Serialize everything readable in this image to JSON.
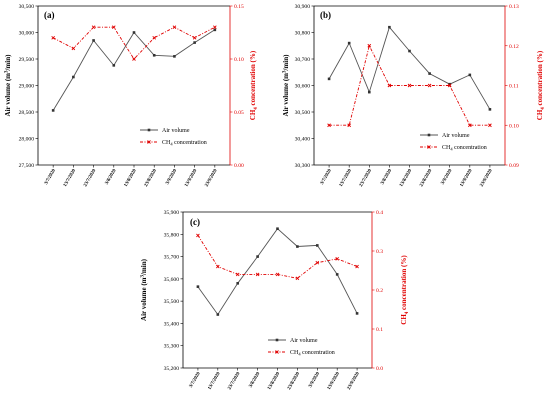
{
  "chart_data": [
    {
      "type": "line",
      "panel_label": "(a)",
      "categories": [
        "3/7/2020",
        "13/7/2020",
        "23/7/2020",
        "3/8/2020",
        "13/8/2020",
        "23/8/2020",
        "3/9/2020",
        "13/9/2020",
        "23/9/2020"
      ],
      "ylabel": {
        "pre": "Air volume (m",
        "sup": "3",
        "post": "/min)"
      },
      "y2label": {
        "pre": "CH",
        "sub": "4",
        "post": " concentration (%)"
      },
      "ylim": [
        27500,
        30500
      ],
      "yticks": [
        "27,500",
        "28,000",
        "28,500",
        "29,000",
        "29,500",
        "30,000",
        "30,500"
      ],
      "y2lim": [
        0,
        0.15
      ],
      "y2ticks": [
        "0.00",
        "0.05",
        "0.10",
        "0.15"
      ],
      "legend": {
        "air": "Air volume",
        "ch4_pre": "CH",
        "ch4_sub": "4",
        "ch4_post": " concentration"
      },
      "series": [
        {
          "name": "Air volume",
          "axis": "left",
          "color": "#555555",
          "values": [
            28530,
            29160,
            29850,
            29380,
            30000,
            29570,
            29550,
            29810,
            30050
          ]
        },
        {
          "name": "CH4 concentration",
          "axis": "right",
          "color": "#e00000",
          "values": [
            0.12,
            0.11,
            0.13,
            0.13,
            0.1,
            0.12,
            0.13,
            0.12,
            0.13
          ]
        }
      ]
    },
    {
      "type": "line",
      "panel_label": "(b)",
      "categories": [
        "3/7/2020",
        "13/7/2020",
        "23/7/2020",
        "3/8/2020",
        "13/8/2020",
        "23/8/2020",
        "3/9/2020",
        "13/9/2020",
        "23/9/2020"
      ],
      "ylabel": {
        "pre": "Air volume (m",
        "sup": "3",
        "post": "/min)"
      },
      "y2label": {
        "pre": "CH",
        "sub": "4",
        "post": " concentration (%)"
      },
      "ylim": [
        30300,
        30900
      ],
      "yticks": [
        "30,300",
        "30,400",
        "30,500",
        "30,600",
        "30,700",
        "30,800",
        "30,900"
      ],
      "y2lim": [
        0.09,
        0.13
      ],
      "y2ticks": [
        "0.09",
        "0.10",
        "0.11",
        "0.12",
        "0.13"
      ],
      "legend": {
        "air": "Air volume",
        "ch4_pre": "CH",
        "ch4_sub": "4",
        "ch4_post": " concentration"
      },
      "series": [
        {
          "name": "Air volume",
          "axis": "left",
          "color": "#555555",
          "values": [
            30625,
            30760,
            30575,
            30820,
            30730,
            30645,
            30605,
            30640,
            30510
          ]
        },
        {
          "name": "CH4 concentration",
          "axis": "right",
          "color": "#e00000",
          "values": [
            0.1,
            0.1,
            0.12,
            0.11,
            0.11,
            0.11,
            0.11,
            0.1,
            0.1
          ]
        }
      ]
    },
    {
      "type": "line",
      "panel_label": "(c)",
      "categories": [
        "3/7/2020",
        "13/7/2020",
        "23/7/2020",
        "3/8/2020",
        "13/8/2020",
        "23/8/2020",
        "3/9/2020",
        "13/9/2020",
        "23/9/2020"
      ],
      "ylabel": {
        "pre": "Air volume (m",
        "sup": "3",
        "post": "/min)"
      },
      "y2label": {
        "pre": "CH",
        "sub": "4",
        "post": " concentration (%)"
      },
      "ylim": [
        35200,
        35900
      ],
      "yticks": [
        "35,200",
        "35,300",
        "35,400",
        "35,500",
        "35,600",
        "35,700",
        "35,800",
        "35,900"
      ],
      "y2lim": [
        0,
        0.4
      ],
      "y2ticks": [
        "0.0",
        "0.1",
        "0.2",
        "0.3",
        "0.4"
      ],
      "legend": {
        "air": "Air volume",
        "ch4_pre": "CH",
        "ch4_sub": "4",
        "ch4_post": " concentration"
      },
      "series": [
        {
          "name": "Air volume",
          "axis": "left",
          "color": "#555555",
          "values": [
            35565,
            35440,
            35580,
            35700,
            35825,
            35745,
            35750,
            35620,
            35445
          ]
        },
        {
          "name": "CH4 concentration",
          "axis": "right",
          "color": "#e00000",
          "values": [
            0.34,
            0.26,
            0.24,
            0.24,
            0.24,
            0.23,
            0.27,
            0.28,
            0.26
          ]
        }
      ]
    }
  ]
}
